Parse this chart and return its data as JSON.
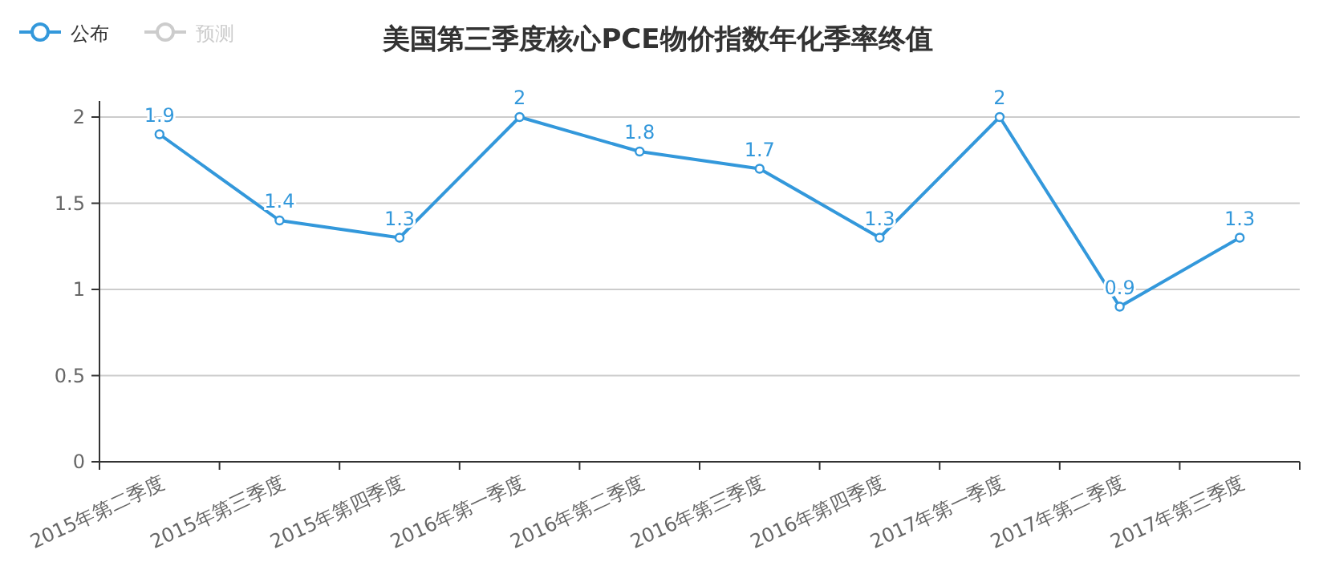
{
  "chart_data": {
    "type": "line",
    "title": "美国第三季度核心PCE物价指数年化季率终值",
    "categories": [
      "2015年第二季度",
      "2015年第三季度",
      "2015年第四季度",
      "2016年第一季度",
      "2016年第二季度",
      "2016年第三季度",
      "2016年第四季度",
      "2017年第一季度",
      "2017年第二季度",
      "2017年第三季度"
    ],
    "series": [
      {
        "name": "公布",
        "color": "#3398db",
        "values": [
          1.9,
          1.4,
          1.3,
          2,
          1.8,
          1.7,
          1.3,
          2,
          0.9,
          1.3
        ]
      },
      {
        "name": "预测",
        "color": "#cccccc",
        "values": [
          null,
          null,
          null,
          null,
          null,
          null,
          null,
          null,
          null,
          null
        ]
      }
    ],
    "ylim": [
      0,
      2
    ],
    "yticks": [
      0,
      0.5,
      1,
      1.5,
      2
    ],
    "grid": "y",
    "legend": "top left",
    "marker": "circle",
    "data_labels": true
  }
}
